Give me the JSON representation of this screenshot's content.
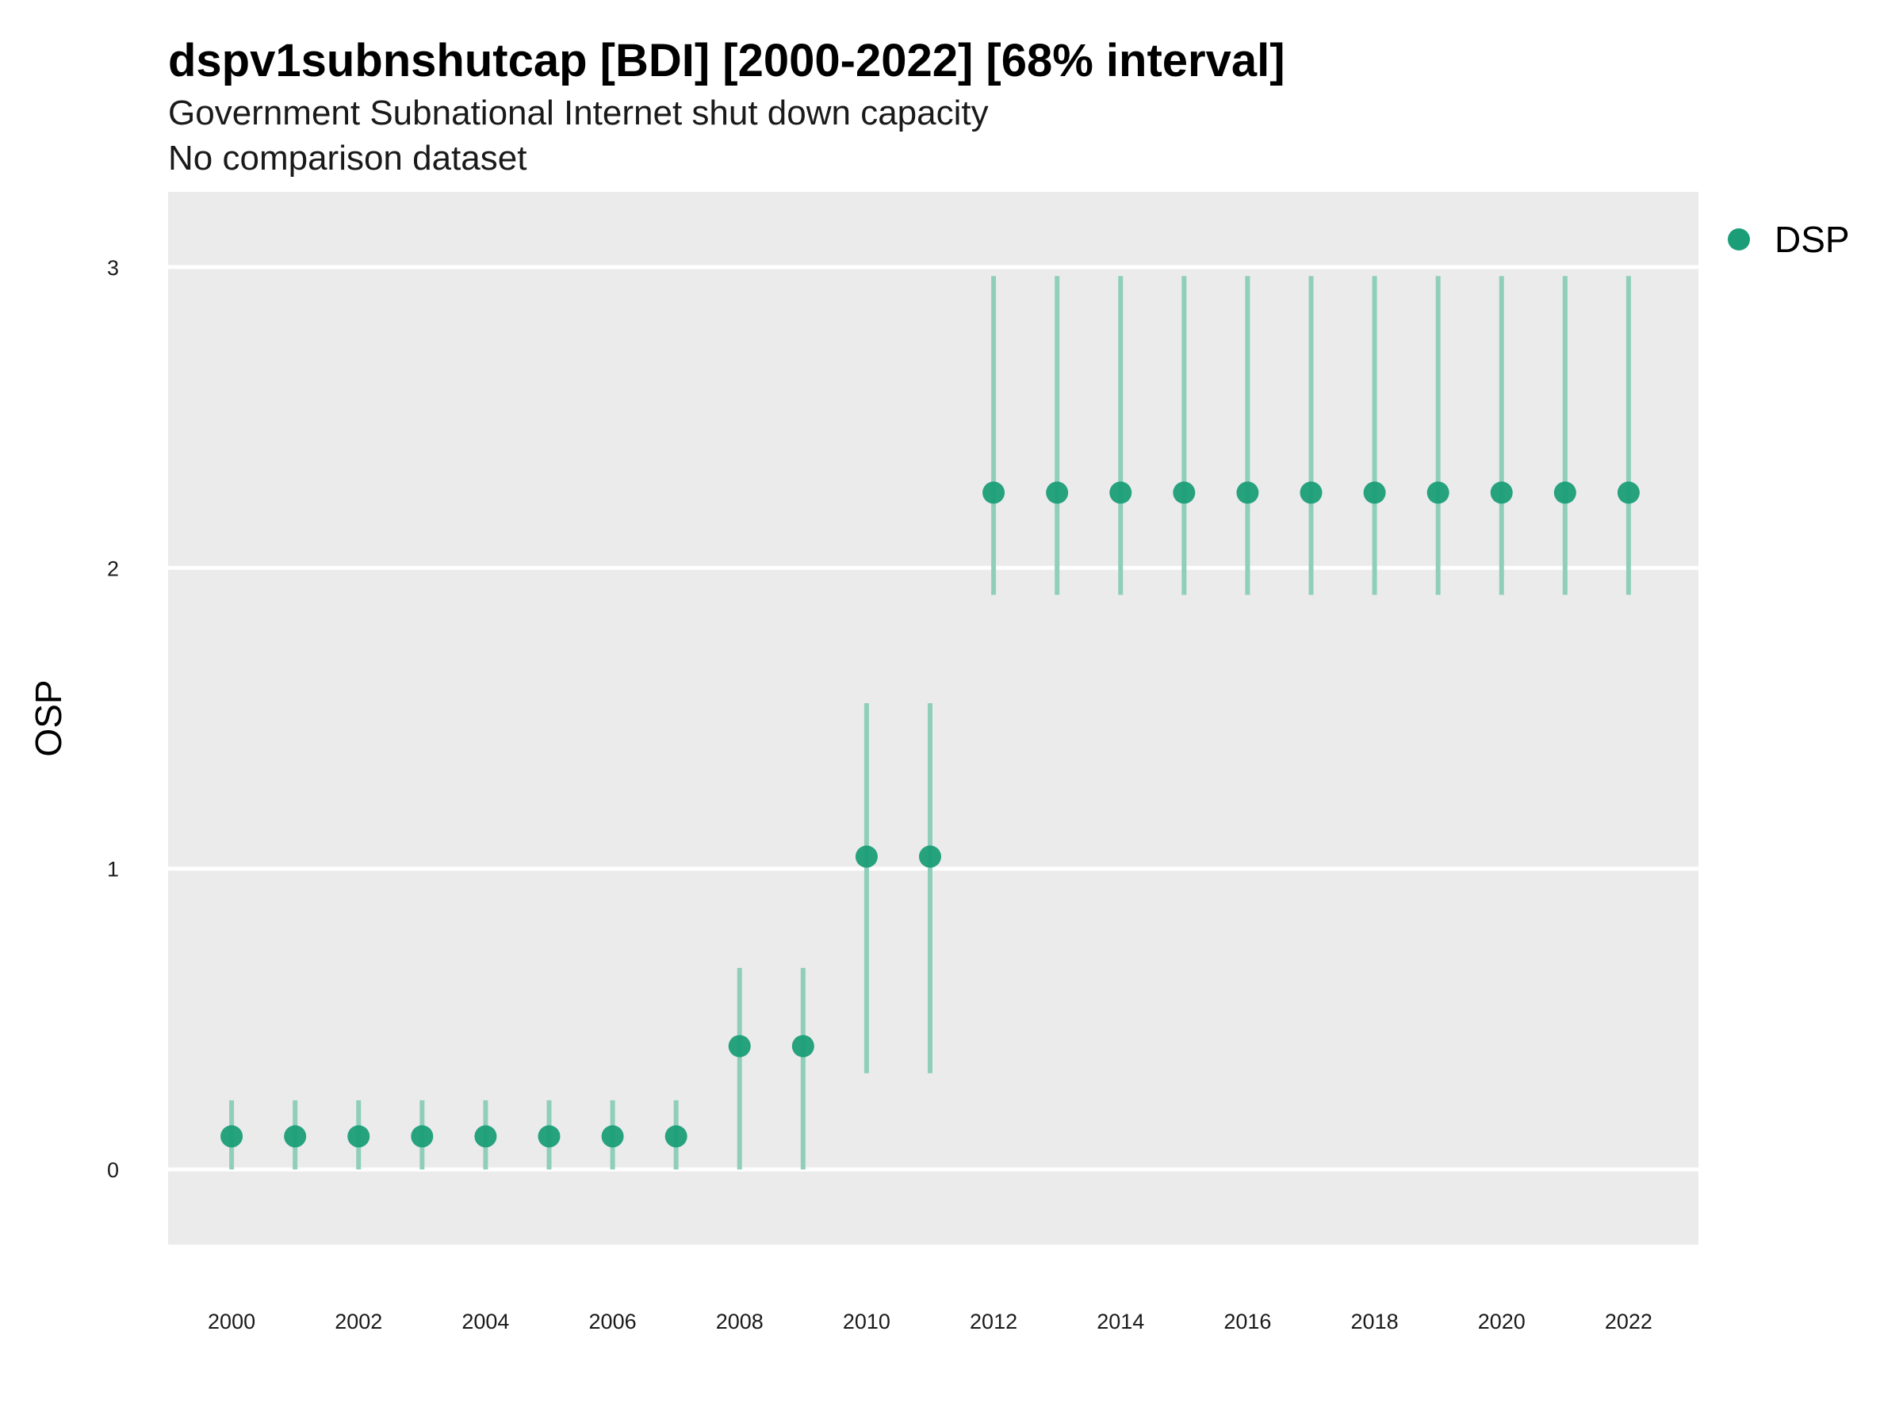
{
  "chart_data": {
    "type": "scatter",
    "title": "dspv1subnshutcap [BDI] [2000-2022] [68% interval]",
    "subtitle_lines": [
      "Government Subnational Internet shut down capacity",
      "No comparison dataset"
    ],
    "ylabel": "OSP",
    "xlabel": "",
    "ylim": [
      -0.25,
      3.25
    ],
    "xlim": [
      1999,
      2023.1
    ],
    "yticks": [
      "0",
      "1",
      "2",
      "3"
    ],
    "xticks": [
      "2000",
      "2002",
      "2004",
      "2006",
      "2008",
      "2010",
      "2012",
      "2014",
      "2016",
      "2018",
      "2020",
      "2022"
    ],
    "grid": true,
    "legend_position": "right",
    "colors": {
      "point": "#1b9e77",
      "interval": "#8fcfba",
      "panel": "#ebebeb",
      "grid": "#ffffff"
    },
    "series": [
      {
        "name": "DSP",
        "x": [
          2000,
          2001,
          2002,
          2003,
          2004,
          2005,
          2006,
          2007,
          2008,
          2009,
          2010,
          2011,
          2012,
          2013,
          2014,
          2015,
          2016,
          2017,
          2018,
          2019,
          2020,
          2021,
          2022
        ],
        "y": [
          0.11,
          0.11,
          0.11,
          0.11,
          0.11,
          0.11,
          0.11,
          0.11,
          0.41,
          0.41,
          1.04,
          1.04,
          2.25,
          2.25,
          2.25,
          2.25,
          2.25,
          2.25,
          2.25,
          2.25,
          2.25,
          2.25,
          2.25
        ],
        "lower": [
          0,
          0,
          0,
          0,
          0,
          0,
          0,
          0,
          0,
          0,
          0.32,
          0.32,
          1.91,
          1.91,
          1.91,
          1.91,
          1.91,
          1.91,
          1.91,
          1.91,
          1.91,
          1.91,
          1.91
        ],
        "upper": [
          0.23,
          0.23,
          0.23,
          0.23,
          0.23,
          0.23,
          0.23,
          0.23,
          0.67,
          0.67,
          1.55,
          1.55,
          2.97,
          2.97,
          2.97,
          2.97,
          2.97,
          2.97,
          2.97,
          2.97,
          2.97,
          2.97,
          2.97
        ]
      }
    ]
  }
}
